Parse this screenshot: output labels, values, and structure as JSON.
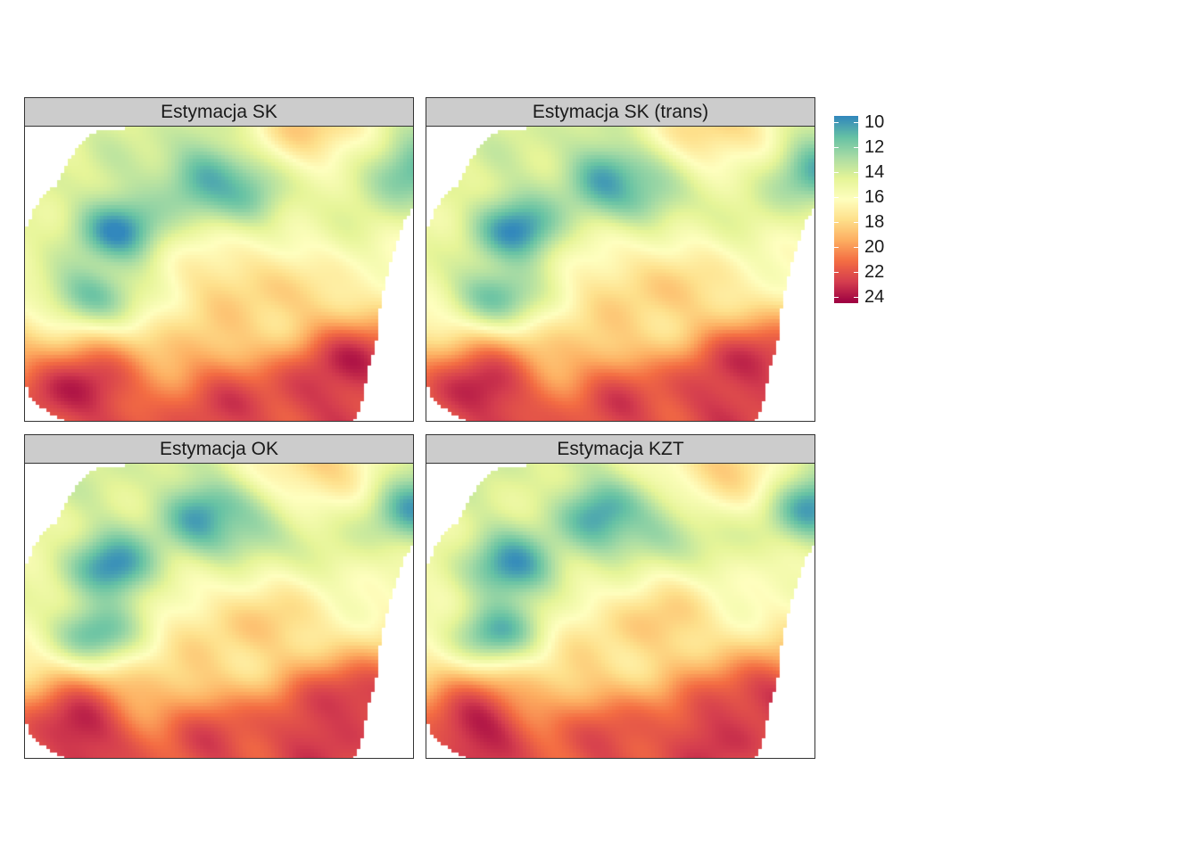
{
  "chart_data": {
    "type": "heatmap",
    "colormap": "Spectral (reversed: low=blue, high=red)",
    "panels": [
      {
        "title": "Estymacja SK"
      },
      {
        "title": "Estymacja SK (trans)"
      },
      {
        "title": "Estymacja OK"
      },
      {
        "title": "Estymacja KZT"
      }
    ],
    "legend": {
      "min": 9.5,
      "max": 24.5,
      "ticks": [
        10,
        12,
        14,
        16,
        18,
        20,
        22,
        24
      ],
      "tick_labels": [
        "10",
        "12",
        "14",
        "16",
        "18",
        "20",
        "22",
        "24"
      ],
      "colors": [
        "#3288bd",
        "#66c2a5",
        "#abdda4",
        "#e6f598",
        "#ffffbf",
        "#fee08b",
        "#fdae61",
        "#f46d43",
        "#d53e4f",
        "#9e0142"
      ]
    },
    "field_features": [
      {
        "kind": "low",
        "x": 0.46,
        "y": 0.18,
        "value": 10.0
      },
      {
        "kind": "low",
        "x": 0.23,
        "y": 0.35,
        "value": 9.5
      },
      {
        "kind": "low",
        "x": 0.17,
        "y": 0.57,
        "value": 10.5
      },
      {
        "kind": "low",
        "x": 0.98,
        "y": 0.14,
        "value": 10.0
      },
      {
        "kind": "low",
        "x": 0.58,
        "y": 0.22,
        "value": 11.5
      },
      {
        "kind": "high",
        "x": 0.13,
        "y": 0.9,
        "value": 24.0
      },
      {
        "kind": "high",
        "x": 0.86,
        "y": 0.81,
        "value": 24.0
      },
      {
        "kind": "high",
        "x": 0.5,
        "y": 0.96,
        "value": 22.5
      },
      {
        "kind": "high",
        "x": 0.73,
        "y": 0.93,
        "value": 23.0
      },
      {
        "kind": "high",
        "x": 0.58,
        "y": 0.55,
        "value": 18.5
      },
      {
        "kind": "high",
        "x": 0.75,
        "y": 0.0,
        "value": 19.0
      }
    ]
  }
}
